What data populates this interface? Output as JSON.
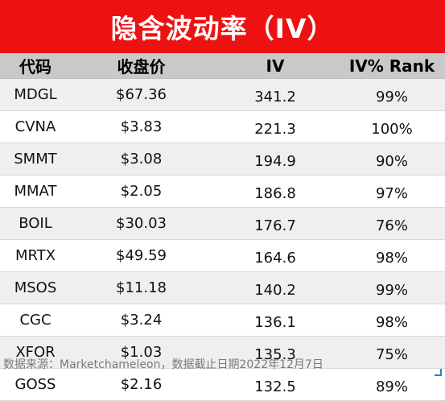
{
  "title": "隐含波动率（IV）",
  "columns": [
    "代码",
    "收盘价",
    "IV",
    "IV% Rank"
  ],
  "rows": [
    {
      "ticker": "MDGL",
      "price": "$67.36",
      "iv": "341.2",
      "rank": "99%"
    },
    {
      "ticker": "CVNA",
      "price": "$3.83",
      "iv": "221.3",
      "rank": "100%"
    },
    {
      "ticker": "SMMT",
      "price": "$3.08",
      "iv": "194.9",
      "rank": "90%"
    },
    {
      "ticker": "MMAT",
      "price": "$2.05",
      "iv": "186.8",
      "rank": "97%"
    },
    {
      "ticker": "BOIL",
      "price": "$30.03",
      "iv": "176.7",
      "rank": "76%"
    },
    {
      "ticker": "MRTX",
      "price": "$49.59",
      "iv": "164.6",
      "rank": "98%"
    },
    {
      "ticker": "MSOS",
      "price": "$11.18",
      "iv": "140.2",
      "rank": "99%"
    },
    {
      "ticker": "CGC",
      "price": "$3.24",
      "iv": "136.1",
      "rank": "98%"
    },
    {
      "ticker": "XFOR",
      "price": "$1.03",
      "iv": "135.3",
      "rank": "75%"
    },
    {
      "ticker": "GOSS",
      "price": "$2.16",
      "iv": "132.5",
      "rank": "89%"
    }
  ],
  "footer": "数据来源：Marketchameleon，数据截止日期2022年12月7日",
  "colors": {
    "banner": "#ee1111",
    "header": "#c9c9c9",
    "stripe": "#efefef"
  }
}
